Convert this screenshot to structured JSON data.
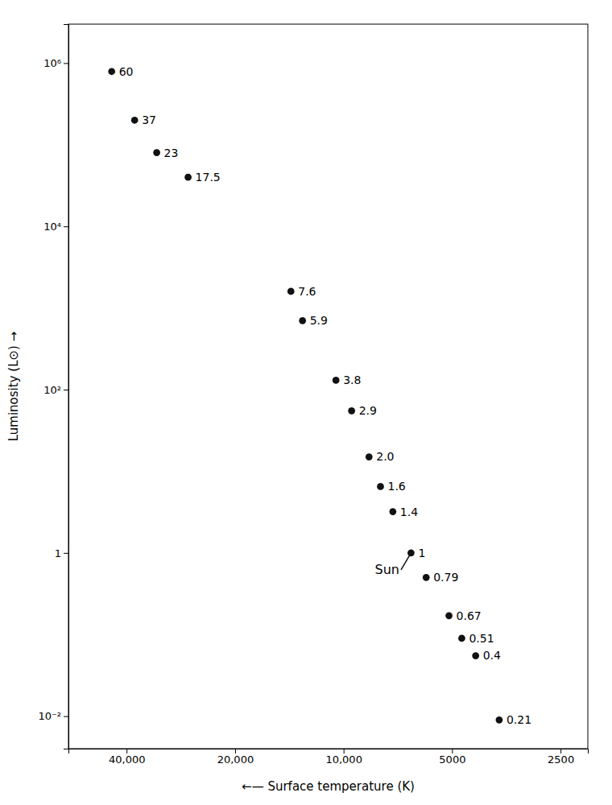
{
  "chart_data": {
    "type": "scatter",
    "log": true,
    "grid": false,
    "marker": "circle",
    "color": "#111111",
    "x_label": "←— Surface temperature (K)",
    "y_label": "Luminosity (L⊙)  →",
    "x": [
      44000,
      38000,
      33000,
      27000,
      14000,
      13000,
      10500,
      9500,
      8500,
      7900,
      7300,
      6500,
      5900,
      5100,
      4700,
      4300,
      3700
    ],
    "values": [
      790000.0,
      200000.0,
      80000.0,
      40000.0,
      1600,
      700,
      130,
      55,
      15,
      6.5,
      3.2,
      1.0,
      0.5,
      0.17,
      0.09,
      0.055,
      0.009
    ],
    "annotations": [
      {
        "text": "60",
        "x": 44000,
        "y": 790000.0
      },
      {
        "text": "37",
        "x": 38000,
        "y": 200000.0
      },
      {
        "text": "23",
        "x": 33000,
        "y": 80000.0
      },
      {
        "text": "17.5",
        "x": 27000,
        "y": 40000.0
      },
      {
        "text": "7.6",
        "x": 14000,
        "y": 1600
      },
      {
        "text": "5.9",
        "x": 13000,
        "y": 700
      },
      {
        "text": "3.8",
        "x": 10500,
        "y": 130
      },
      {
        "text": "2.9",
        "x": 9500,
        "y": 55
      },
      {
        "text": "2.0",
        "x": 8500,
        "y": 15
      },
      {
        "text": "1.6",
        "x": 7900,
        "y": 6.5
      },
      {
        "text": "1.4",
        "x": 7300,
        "y": 3.2
      },
      {
        "text": "1",
        "x": 6500,
        "y": 1.0
      },
      {
        "text": "0.79",
        "x": 5900,
        "y": 0.5
      },
      {
        "text": "0.67",
        "x": 5100,
        "y": 0.17
      },
      {
        "text": "0.51",
        "x": 4700,
        "y": 0.09
      },
      {
        "text": "0.4",
        "x": 4300,
        "y": 0.055
      },
      {
        "text": "0.21",
        "x": 3700,
        "y": 0.009
      },
      {
        "text": "Sun",
        "x": 7000,
        "y": 0.62,
        "target": [
          6500,
          1.0
        ]
      }
    ],
    "xlim": [
      58000,
      2100
    ],
    "ylim": [
      0.004,
      3000000.0
    ],
    "xticks": [
      {
        "value": 40000,
        "label": "40,000"
      },
      {
        "value": 20000,
        "label": "20,000"
      },
      {
        "value": 10000,
        "label": "10,000"
      },
      5000,
      2500
    ],
    "yticks": [
      {
        "value": 0.01,
        "label": "10⁻²"
      },
      1,
      {
        "value": 100,
        "label": "10²"
      },
      {
        "value": 10000,
        "label": "10⁴"
      },
      {
        "value": 1000000,
        "label": "10⁶"
      }
    ]
  }
}
